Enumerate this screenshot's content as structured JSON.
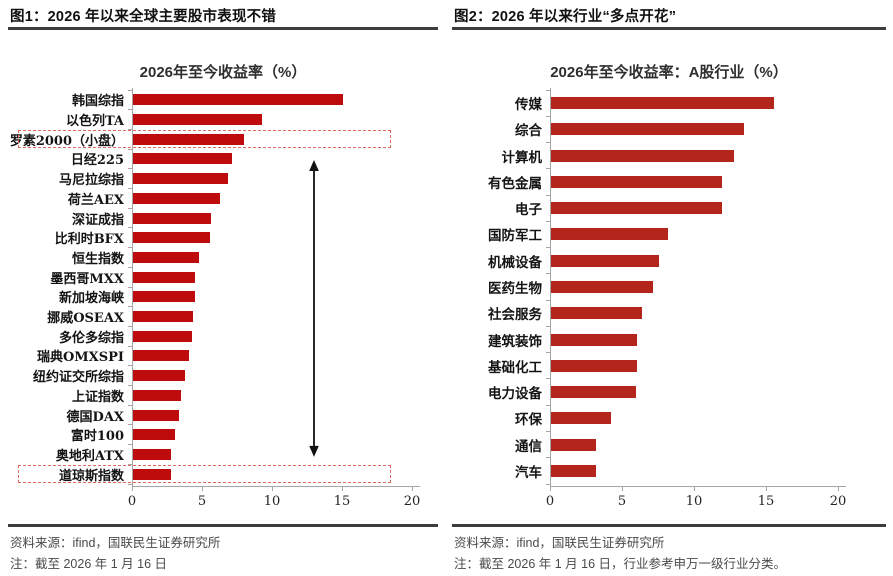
{
  "page": {
    "background": "#ffffff",
    "accent_dark_rule": "#3d3d3d"
  },
  "figures": [
    {
      "caption": "图1：2026 年以来全球主要股市表现不错",
      "source": "资料来源：ifind，国联民生证券研究所",
      "note": "注：截至 2026 年 1 月 16 日"
    },
    {
      "caption": "图2：2026 年以来行业“多点开花”",
      "source": "资料来源：ifind，国联民生证券研究所",
      "note": "注：截至 2026 年 1 月 16 日，行业参考申万一级行业分类。"
    }
  ],
  "chart_data": [
    {
      "type": "bar",
      "orientation": "horizontal",
      "title": "2026年至今收益率（%）",
      "categories": [
        "韩国综指",
        "以色列TA",
        "罗素2000（小盘）",
        "日经225",
        "马尼拉综指",
        "荷兰AEX",
        "深证成指",
        "比利时BFX",
        "恒生指数",
        "墨西哥MXX",
        "新加坡海峡",
        "挪威OSEAX",
        "多伦多综指",
        "瑞典OMXSPI",
        "纽约证交所综指",
        "上证指数",
        "德国DAX",
        "富时100",
        "奥地利ATX",
        "道琼斯指数"
      ],
      "values": [
        15.0,
        9.2,
        7.9,
        7.1,
        6.8,
        6.2,
        5.6,
        5.5,
        4.7,
        4.4,
        4.4,
        4.3,
        4.2,
        4.0,
        3.7,
        3.4,
        3.3,
        3.0,
        2.7,
        2.7
      ],
      "xlim": [
        0,
        20
      ],
      "xticks": [
        0,
        5,
        10,
        15,
        20
      ],
      "grid": false,
      "legend": "none",
      "bar_color": "#be0b0b",
      "highlight_categories": [
        "罗素2000（小盘）",
        "道琼斯指数"
      ],
      "highlight_box_color": "#e0685e",
      "annotation_arrow": {
        "from_category": "罗素2000（小盘）",
        "to_category": "道琼斯指数",
        "x_value": 13,
        "color": "#111111"
      }
    },
    {
      "type": "bar",
      "orientation": "horizontal",
      "title": "2026年至今收益率：A股行业（%）",
      "categories": [
        "传媒",
        "综合",
        "计算机",
        "有色金属",
        "电子",
        "国防军工",
        "机械设备",
        "医药生物",
        "社会服务",
        "建筑装饰",
        "基础化工",
        "电力设备",
        "环保",
        "通信",
        "汽车"
      ],
      "values": [
        15.5,
        13.4,
        12.7,
        11.9,
        11.9,
        8.1,
        7.5,
        7.1,
        6.3,
        6.0,
        6.0,
        5.9,
        4.2,
        3.1,
        3.1
      ],
      "xlim": [
        0,
        20
      ],
      "xticks": [
        0,
        5,
        10,
        15,
        20
      ],
      "grid": false,
      "legend": "none",
      "bar_color": "#b4261c"
    }
  ]
}
